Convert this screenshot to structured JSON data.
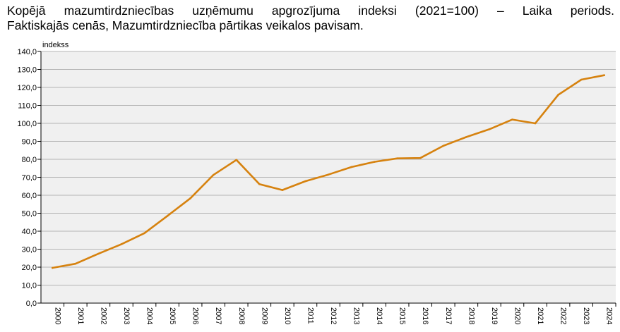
{
  "chart_data": {
    "type": "line",
    "title": "Kopējā mazumtirdzniecības uzņēmumu apgrozījuma indeksi (2021=100) – Laika periods.",
    "subtitle": "Faktiskajās cenās, Mazumtirdzniecība pārtikas veikalos pavisam.",
    "ylabel": "indekss",
    "xlabel": "",
    "ylim": [
      0,
      140
    ],
    "yticks": [
      "0,0",
      "10,0",
      "20,0",
      "30,0",
      "40,0",
      "50,0",
      "60,0",
      "70,0",
      "80,0",
      "90,0",
      "100,0",
      "110,0",
      "120,0",
      "130,0",
      "140,0"
    ],
    "categories": [
      "2000",
      "2001",
      "2002",
      "2003",
      "2004",
      "2005",
      "2006",
      "2007",
      "2008",
      "2009",
      "2010",
      "2011",
      "2012",
      "2013",
      "2014",
      "2015",
      "2016",
      "2017",
      "2018",
      "2019",
      "2020",
      "2021",
      "2022",
      "2023",
      "2024"
    ],
    "series": [
      {
        "color": "#d6820f",
        "values": [
          19.6,
          21.9,
          27.5,
          32.8,
          38.9,
          48.5,
          58.3,
          71.3,
          79.7,
          66.2,
          62.9,
          67.8,
          71.5,
          75.7,
          78.6,
          80.5,
          80.7,
          87.5,
          92.4,
          96.7,
          102.1,
          100.0,
          115.9,
          124.3,
          126.8
        ]
      }
    ],
    "grid": true,
    "plot_background": "#f0f0f0",
    "grid_color": "#b4b4b4"
  }
}
